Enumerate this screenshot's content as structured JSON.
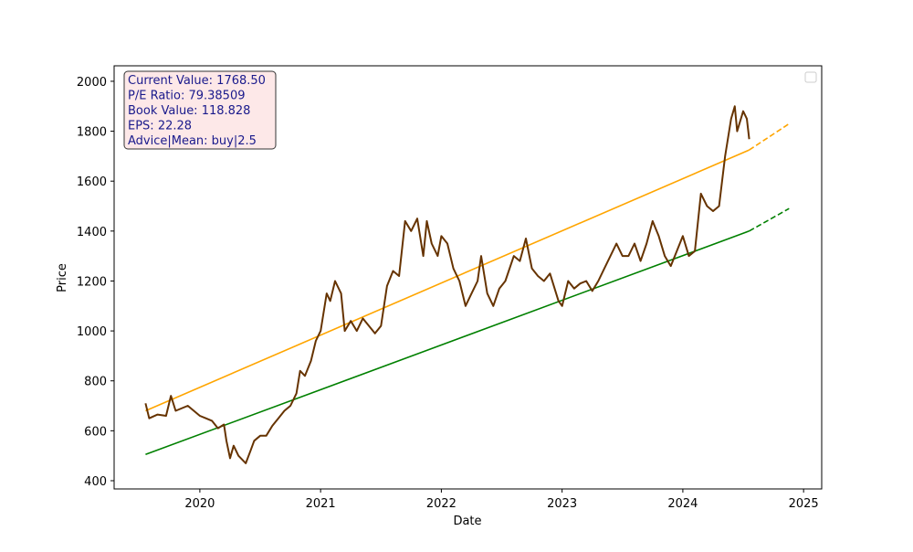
{
  "chart_data": {
    "type": "line",
    "xlabel": "Date",
    "ylabel": "Price",
    "xlim": [
      2019.29,
      2025.15
    ],
    "ylim": [
      367,
      2062
    ],
    "xticks": [
      2020,
      2021,
      2022,
      2023,
      2024,
      2025
    ],
    "yticks": [
      400,
      600,
      800,
      1000,
      1200,
      1400,
      1600,
      1800,
      2000
    ],
    "annotations": [
      "Current Value: 1768.50",
      "P/E Ratio: 79.38509",
      "Book Value: 118.828",
      "EPS: 22.28",
      "Advice|Mean: buy|2.5"
    ],
    "series": [
      {
        "color": "#ffa500",
        "linestyle": "solid",
        "x": [
          2019.55,
          2024.55
        ],
        "values": [
          680,
          1725
        ]
      },
      {
        "color": "#ffa500",
        "linestyle": "dashed",
        "x": [
          2024.55,
          2024.88
        ],
        "values": [
          1725,
          1830
        ]
      },
      {
        "color": "#008000",
        "linestyle": "solid",
        "x": [
          2019.55,
          2024.55
        ],
        "values": [
          505,
          1400
        ]
      },
      {
        "color": "#008000",
        "linestyle": "dashed",
        "x": [
          2024.55,
          2024.88
        ],
        "values": [
          1400,
          1490
        ]
      },
      {
        "color": "#663300",
        "linestyle": "solid",
        "x": [
          2019.55,
          2019.58,
          2019.65,
          2019.72,
          2019.76,
          2019.8,
          2019.9,
          2019.95,
          2020.0,
          2020.05,
          2020.1,
          2020.15,
          2020.2,
          2020.22,
          2020.25,
          2020.28,
          2020.32,
          2020.38,
          2020.42,
          2020.45,
          2020.5,
          2020.55,
          2020.6,
          2020.65,
          2020.7,
          2020.75,
          2020.8,
          2020.83,
          2020.87,
          2020.92,
          2020.96,
          2021.0,
          2021.05,
          2021.08,
          2021.12,
          2021.17,
          2021.2,
          2021.25,
          2021.3,
          2021.35,
          2021.4,
          2021.45,
          2021.5,
          2021.55,
          2021.6,
          2021.65,
          2021.7,
          2021.75,
          2021.8,
          2021.85,
          2021.88,
          2021.92,
          2021.97,
          2022.0,
          2022.05,
          2022.1,
          2022.15,
          2022.2,
          2022.25,
          2022.3,
          2022.33,
          2022.38,
          2022.43,
          2022.48,
          2022.53,
          2022.6,
          2022.65,
          2022.7,
          2022.75,
          2022.8,
          2022.85,
          2022.9,
          2022.97,
          2023.0,
          2023.05,
          2023.1,
          2023.15,
          2023.2,
          2023.25,
          2023.3,
          2023.35,
          2023.4,
          2023.45,
          2023.5,
          2023.55,
          2023.6,
          2023.65,
          2023.7,
          2023.75,
          2023.8,
          2023.85,
          2023.9,
          2023.95,
          2024.0,
          2024.05,
          2024.1,
          2024.15,
          2024.2,
          2024.25,
          2024.3,
          2024.35,
          2024.4,
          2024.43,
          2024.45,
          2024.5,
          2024.53,
          2024.55
        ],
        "values": [
          710,
          650,
          665,
          660,
          740,
          680,
          700,
          680,
          660,
          650,
          640,
          610,
          625,
          560,
          490,
          540,
          500,
          470,
          520,
          560,
          580,
          580,
          620,
          650,
          680,
          700,
          750,
          840,
          820,
          880,
          960,
          1000,
          1150,
          1120,
          1200,
          1150,
          1000,
          1040,
          1000,
          1050,
          1020,
          990,
          1020,
          1180,
          1240,
          1220,
          1440,
          1400,
          1450,
          1300,
          1440,
          1350,
          1300,
          1380,
          1350,
          1250,
          1200,
          1100,
          1150,
          1200,
          1300,
          1150,
          1100,
          1170,
          1200,
          1300,
          1280,
          1370,
          1250,
          1220,
          1200,
          1230,
          1120,
          1100,
          1200,
          1170,
          1190,
          1200,
          1160,
          1200,
          1250,
          1300,
          1350,
          1300,
          1300,
          1350,
          1280,
          1350,
          1440,
          1380,
          1300,
          1260,
          1320,
          1380,
          1300,
          1320,
          1550,
          1500,
          1480,
          1500,
          1700,
          1850,
          1900,
          1800,
          1880,
          1850,
          1768.5
        ]
      }
    ]
  }
}
